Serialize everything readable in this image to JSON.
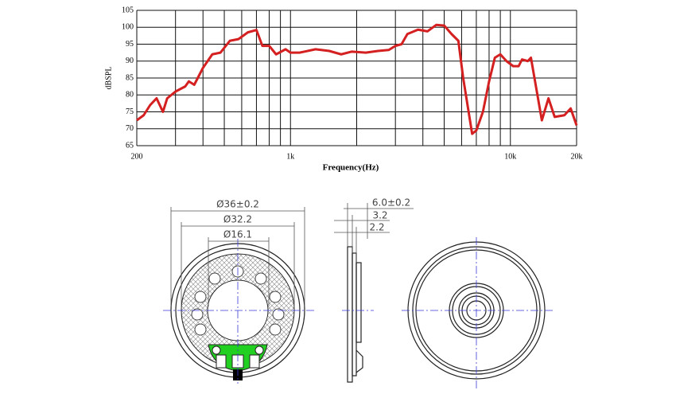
{
  "chart_data": {
    "type": "line",
    "ylabel": "dBSPL",
    "xlabel": "Frequency(Hz)",
    "xscale": "log",
    "x": [
      200,
      215,
      230,
      246,
      263,
      275,
      300,
      332,
      345,
      365,
      400,
      441,
      480,
      530,
      580,
      640,
      700,
      745,
      800,
      860,
      950,
      1000,
      1100,
      1300,
      1500,
      1700,
      1900,
      2200,
      2500,
      2800,
      3000,
      3200,
      3400,
      3800,
      4200,
      4600,
      5000,
      5400,
      5800,
      6100,
      6700,
      7000,
      7500,
      8000,
      8500,
      9000,
      9600,
      10300,
      10900,
      11300,
      12000,
      12400,
      13900,
      14900,
      15900,
      17600,
      18800,
      20000
    ],
    "series": [
      {
        "name": "dBSPL",
        "color": "#d42020",
        "values": [
          72.5,
          74,
          77,
          79,
          75,
          79,
          81,
          82.5,
          84,
          83,
          88,
          92,
          92.5,
          96,
          96.5,
          98.5,
          99.2,
          94.5,
          94.5,
          92,
          93.5,
          92.5,
          92.5,
          93.5,
          93,
          92,
          92.8,
          92.5,
          93,
          93.3,
          94.5,
          95,
          98,
          99.3,
          98.8,
          100.7,
          100.5,
          98,
          96,
          85,
          68.5,
          69.5,
          75,
          84,
          91,
          92,
          90,
          88.5,
          88.5,
          90.5,
          90,
          91,
          72.5,
          79,
          73.5,
          74,
          76,
          71
        ]
      }
    ],
    "xlim": [
      200,
      20000
    ],
    "xticks": [
      200,
      {
        "value": 1000,
        "label": "1k"
      },
      {
        "value": 10000,
        "label": "10k"
      },
      {
        "value": 20000,
        "label": "20k"
      }
    ],
    "xminor_ticks": [
      300,
      400,
      500,
      600,
      700,
      800,
      900,
      2000,
      3000,
      4000,
      5000,
      6000,
      7000,
      8000,
      9000
    ],
    "ylim": [
      65,
      105
    ],
    "yticks": [
      65,
      70,
      75,
      80,
      85,
      90,
      95,
      100,
      105
    ],
    "grid": true
  },
  "drawing": {
    "dimensions": [
      "Ø36±0.2",
      "Ø32.2",
      "Ø16.1",
      "6.0±0.2",
      "3.2",
      "2.2"
    ]
  }
}
